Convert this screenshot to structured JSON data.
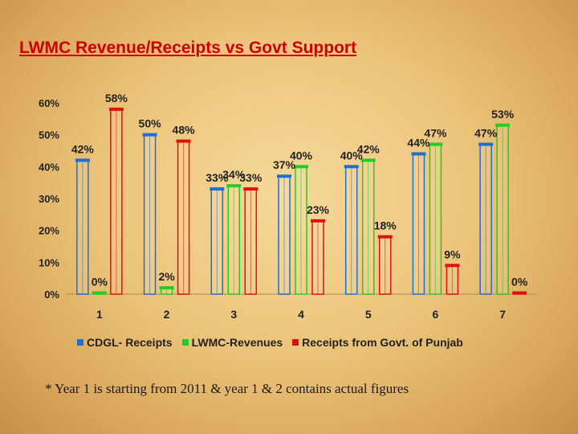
{
  "title": "LWMC Revenue/Receipts vs Govt Support",
  "footnote": "* Year 1 is starting from 2011 & year 1 & 2 contains actual figures",
  "chart_data": {
    "type": "bar",
    "title": "LWMC Revenue/Receipts vs Govt Support",
    "xlabel": "",
    "ylabel": "",
    "ylim": [
      0,
      60
    ],
    "yticks": [
      "0%",
      "10%",
      "20%",
      "30%",
      "40%",
      "50%",
      "60%"
    ],
    "categories": [
      "1",
      "2",
      "3",
      "4",
      "5",
      "6",
      "7"
    ],
    "legend_position": "bottom",
    "series": [
      {
        "name": "CDGL- Receipts",
        "color": "#1f6fd0",
        "values": [
          42,
          50,
          33,
          37,
          40,
          44,
          47
        ],
        "labels": [
          "42%",
          "50%",
          "33%",
          "37%",
          "40%",
          "44%",
          "47%"
        ]
      },
      {
        "name": "LWMC-Revenues",
        "color": "#22cc22",
        "values": [
          0,
          2,
          34,
          40,
          42,
          47,
          53
        ],
        "labels": [
          "0%",
          "2%",
          "34%",
          "40%",
          "42%",
          "47%",
          "53%"
        ]
      },
      {
        "name": "Receipts from Govt. of Punjab",
        "color": "#dd1111",
        "values": [
          58,
          48,
          33,
          23,
          18,
          9,
          0
        ],
        "labels": [
          "58%",
          "48%",
          "33%",
          "23%",
          "18%",
          "9%",
          "0%"
        ]
      }
    ]
  }
}
